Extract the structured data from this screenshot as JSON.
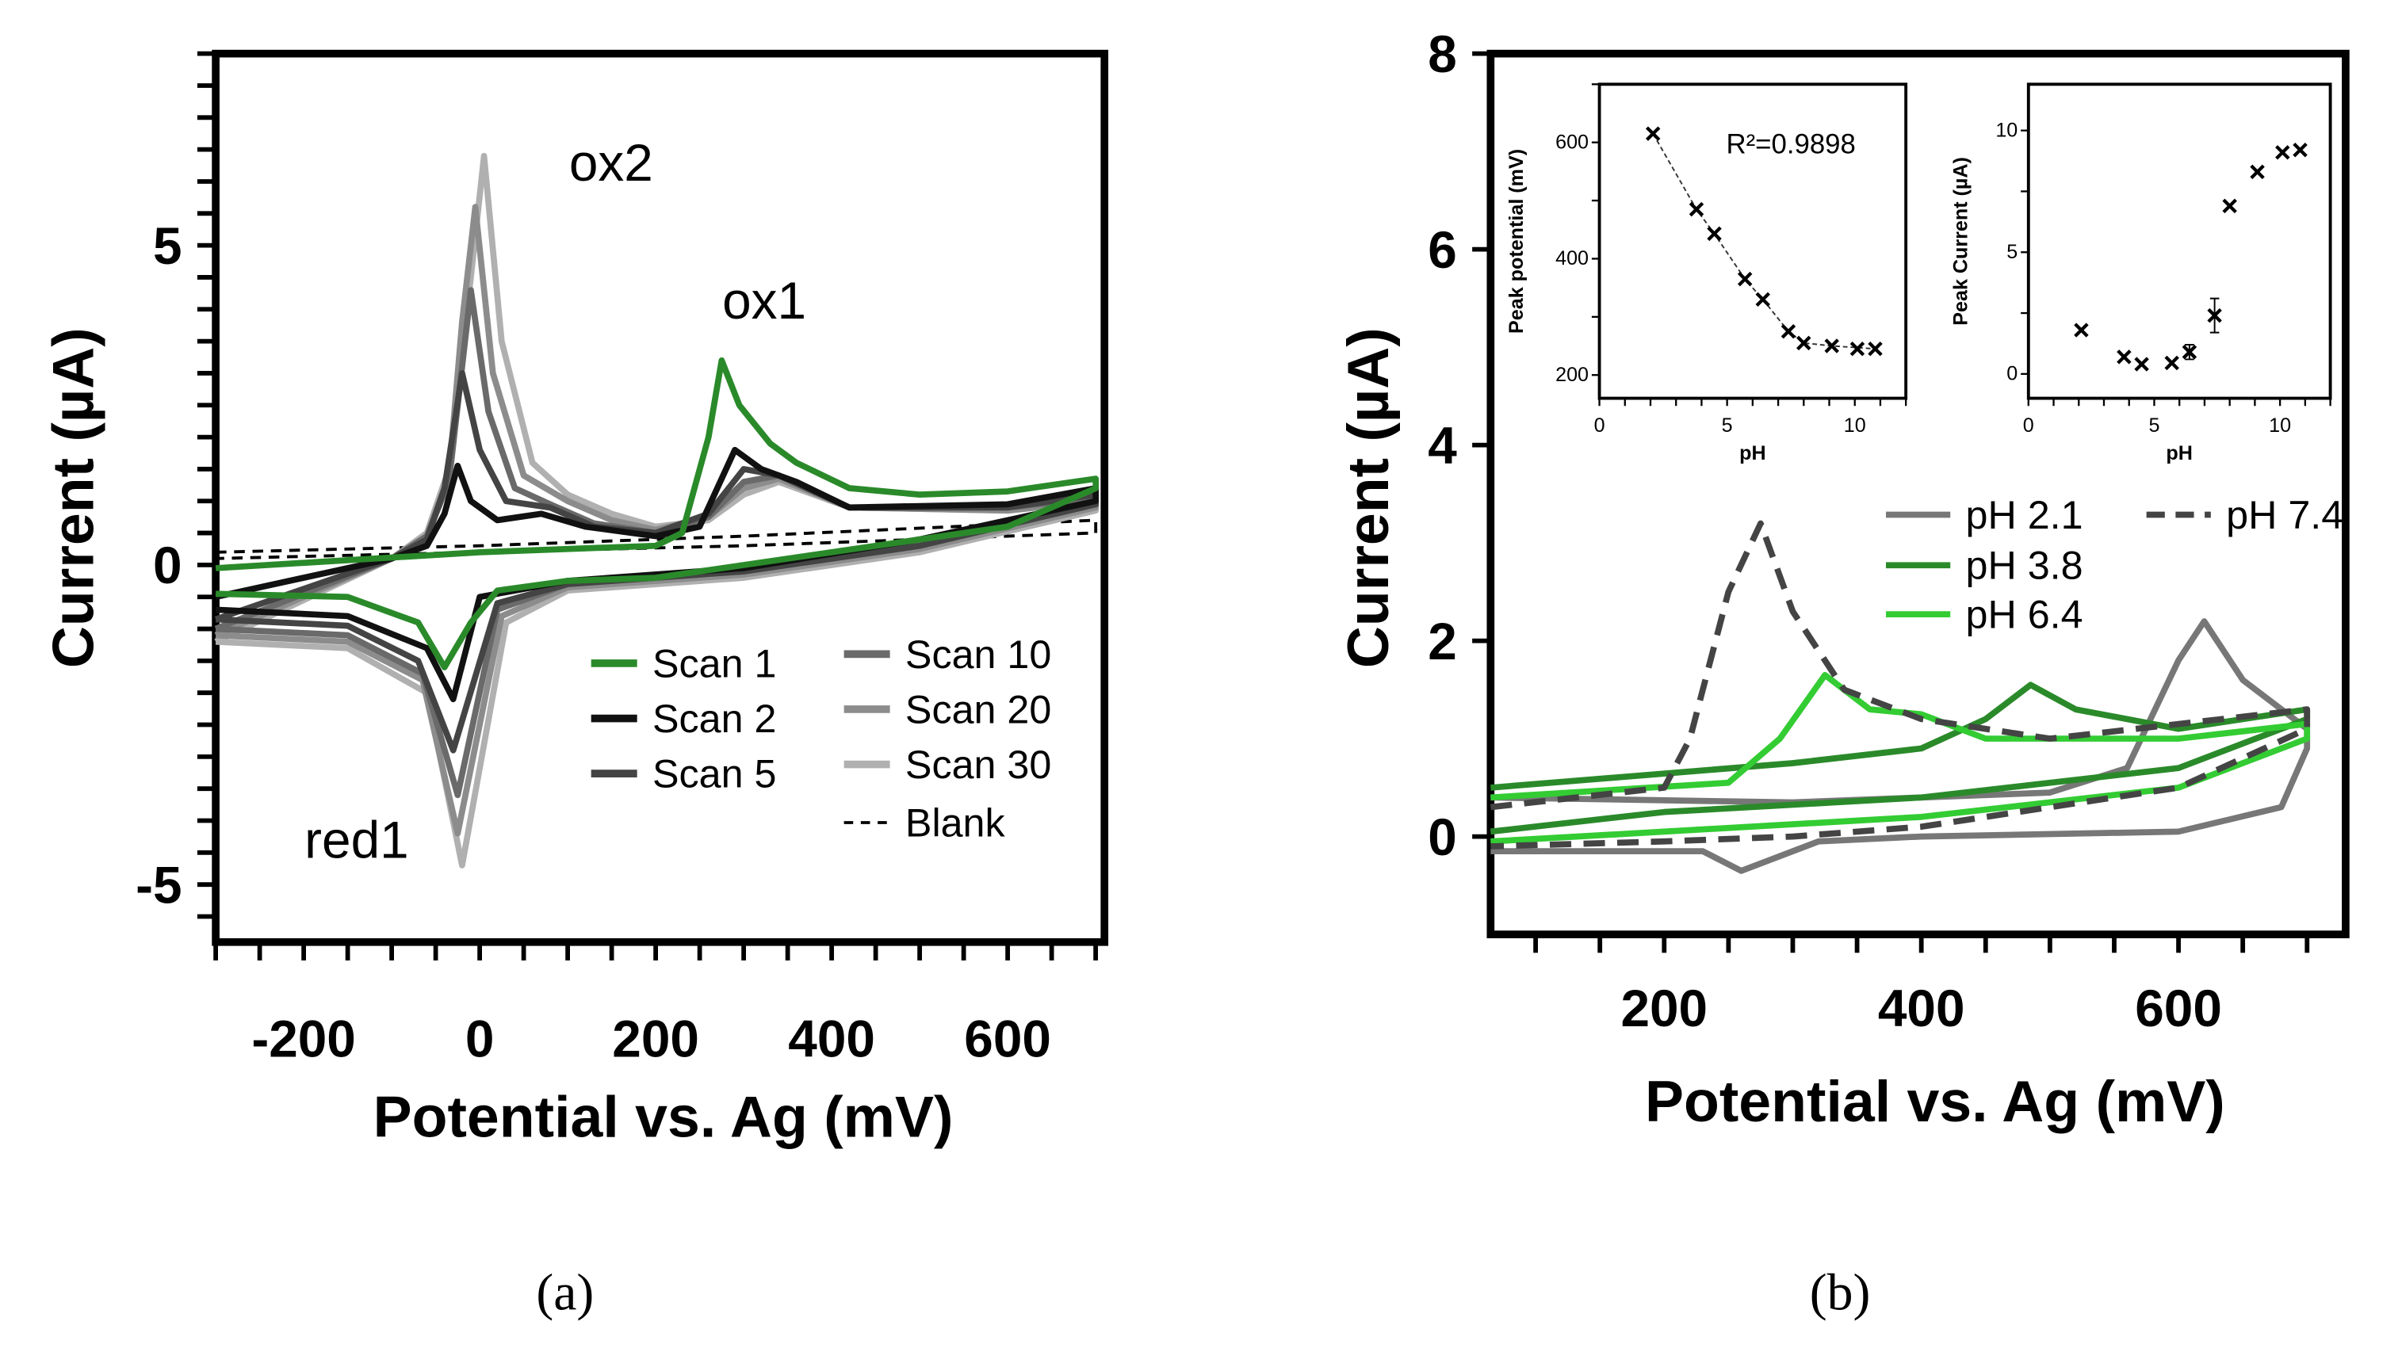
{
  "chart_data": [
    {
      "id": "a",
      "type": "line",
      "panel_label": "(a)",
      "xlabel": "Potential vs. Ag (mV)",
      "ylabel": "Current (µA)",
      "xlim": [
        -300,
        710
      ],
      "ylim": [
        -5.9,
        8
      ],
      "xticks": [
        -200,
        0,
        200,
        400,
        600
      ],
      "yticks": [
        -5,
        0,
        5
      ],
      "annotations": [
        "ox2",
        "ox1",
        "red1"
      ],
      "legend_placement": "bottom-right",
      "series": [
        {
          "name": "Blank",
          "color": "#000000",
          "dash": true,
          "x": [
            -300,
            0,
            300,
            700,
            700,
            300,
            0,
            -300
          ],
          "y": [
            0.2,
            0.3,
            0.45,
            0.7,
            0.5,
            0.3,
            0.2,
            0.1
          ]
        },
        {
          "name": "Scan 30",
          "color": "#b0b0b0",
          "x": [
            -300,
            -100,
            -60,
            -35,
            -10,
            5,
            25,
            60,
            100,
            150,
            200,
            260,
            300,
            340,
            420,
            600,
            700,
            700,
            500,
            300,
            100,
            30,
            -20,
            -60,
            -150,
            -300
          ],
          "y": [
            -1.2,
            0.1,
            0.5,
            1.5,
            4.5,
            6.4,
            3.5,
            1.6,
            1.1,
            0.8,
            0.6,
            0.7,
            1.1,
            1.3,
            0.9,
            0.85,
            1.0,
            0.85,
            0.2,
            -0.2,
            -0.4,
            -0.9,
            -4.7,
            -2.0,
            -1.3,
            -1.2
          ]
        },
        {
          "name": "Scan 20",
          "color": "#8c8c8c",
          "x": [
            -300,
            -100,
            -60,
            -35,
            -20,
            -5,
            15,
            50,
            100,
            150,
            200,
            260,
            300,
            340,
            420,
            600,
            700,
            700,
            500,
            300,
            100,
            25,
            -25,
            -65,
            -150,
            -300
          ],
          "y": [
            -1.1,
            0.1,
            0.45,
            1.4,
            3.8,
            5.6,
            3.0,
            1.4,
            1.0,
            0.7,
            0.55,
            0.75,
            1.2,
            1.35,
            0.9,
            0.85,
            1.0,
            0.9,
            0.25,
            -0.15,
            -0.35,
            -0.8,
            -4.2,
            -1.8,
            -1.2,
            -1.1
          ]
        },
        {
          "name": "Scan 10",
          "color": "#6a6a6a",
          "x": [
            -300,
            -100,
            -60,
            -35,
            -10,
            10,
            40,
            80,
            130,
            200,
            260,
            300,
            340,
            420,
            600,
            700,
            700,
            500,
            300,
            100,
            20,
            -25,
            -65,
            -150,
            -300
          ],
          "y": [
            -1.0,
            0.1,
            0.45,
            1.3,
            4.3,
            2.4,
            1.2,
            0.95,
            0.65,
            0.5,
            0.75,
            1.3,
            1.4,
            0.9,
            0.9,
            1.05,
            0.95,
            0.3,
            -0.1,
            -0.3,
            -0.7,
            -3.6,
            -1.7,
            -1.1,
            -1.0
          ]
        },
        {
          "name": "Scan 5",
          "color": "#444444",
          "x": [
            -300,
            -100,
            -60,
            -40,
            -20,
            0,
            30,
            80,
            130,
            200,
            260,
            300,
            340,
            420,
            600,
            700,
            700,
            500,
            300,
            100,
            20,
            -30,
            -70,
            -150,
            -300
          ],
          "y": [
            -0.85,
            0.1,
            0.4,
            1.2,
            3.0,
            1.8,
            1.0,
            0.9,
            0.6,
            0.5,
            0.8,
            1.5,
            1.4,
            0.9,
            0.9,
            1.1,
            0.95,
            0.3,
            -0.1,
            -0.3,
            -0.6,
            -2.9,
            -1.5,
            -0.95,
            -0.85
          ]
        },
        {
          "name": "Scan 2",
          "color": "#111111",
          "x": [
            -300,
            -100,
            -60,
            -40,
            -25,
            -10,
            20,
            70,
            120,
            200,
            250,
            290,
            320,
            360,
            420,
            600,
            700,
            700,
            500,
            300,
            100,
            0,
            -30,
            -60,
            -150,
            -300
          ],
          "y": [
            -0.5,
            0.1,
            0.3,
            0.8,
            1.55,
            1.0,
            0.7,
            0.8,
            0.6,
            0.45,
            0.6,
            1.8,
            1.5,
            1.3,
            0.9,
            0.95,
            1.2,
            1.0,
            0.4,
            -0.05,
            -0.25,
            -0.5,
            -2.1,
            -1.3,
            -0.8,
            -0.7
          ]
        },
        {
          "name": "Scan 1",
          "color": "#2a8a2a",
          "x": [
            -300,
            0,
            200,
            230,
            260,
            275,
            295,
            330,
            360,
            420,
            500,
            600,
            700,
            700,
            600,
            400,
            200,
            100,
            20,
            -10,
            -40,
            -70,
            -150,
            -300
          ],
          "y": [
            -0.05,
            0.2,
            0.3,
            0.5,
            2.0,
            3.2,
            2.5,
            1.9,
            1.6,
            1.2,
            1.1,
            1.15,
            1.35,
            1.2,
            0.6,
            0.2,
            -0.2,
            -0.25,
            -0.4,
            -0.9,
            -1.6,
            -0.9,
            -0.5,
            -0.45
          ]
        }
      ],
      "legend_order": [
        "Scan 1",
        "Scan 2",
        "Scan 5",
        "Scan 10",
        "Scan 20",
        "Scan 30",
        "Blank"
      ]
    },
    {
      "id": "b",
      "type": "line",
      "panel_label": "(b)",
      "xlabel": "Potential vs. Ag (mV)",
      "ylabel": "Current (µA)",
      "xlim": [
        65,
        730
      ],
      "ylim": [
        -1,
        8
      ],
      "xticks": [
        200,
        400,
        600
      ],
      "yticks": [
        0,
        2,
        4,
        6,
        8
      ],
      "legend_placement": "middle-right",
      "series": [
        {
          "name": "pH 2.1",
          "color": "#777777",
          "x": [
            65,
            300,
            500,
            560,
            600,
            620,
            650,
            700,
            700,
            680,
            600,
            400,
            320,
            280,
            260,
            230,
            150,
            65
          ],
          "y": [
            0.4,
            0.35,
            0.45,
            0.7,
            1.8,
            2.2,
            1.6,
            1.1,
            0.9,
            0.3,
            0.05,
            0,
            -0.05,
            -0.25,
            -0.35,
            -0.15,
            -0.15,
            -0.15
          ]
        },
        {
          "name": "pH 3.8",
          "color": "#2a8a2a",
          "x": [
            65,
            300,
            400,
            450,
            485,
            520,
            600,
            700,
            700,
            600,
            400,
            200,
            65
          ],
          "y": [
            0.5,
            0.75,
            0.9,
            1.2,
            1.55,
            1.3,
            1.1,
            1.3,
            1.2,
            0.7,
            0.4,
            0.25,
            0.05
          ]
        },
        {
          "name": "pH 6.4",
          "color": "#33cc33",
          "x": [
            65,
            250,
            290,
            325,
            360,
            400,
            450,
            600,
            700,
            700,
            600,
            400,
            200,
            65
          ],
          "y": [
            0.4,
            0.55,
            1.0,
            1.65,
            1.3,
            1.25,
            1.0,
            1.0,
            1.15,
            1.0,
            0.5,
            0.2,
            0.05,
            -0.05
          ]
        },
        {
          "name": "pH 7.4",
          "color": "#444444",
          "dash": true,
          "x": [
            65,
            200,
            220,
            250,
            275,
            300,
            340,
            400,
            500,
            700,
            700,
            600,
            400,
            300,
            200,
            65
          ],
          "y": [
            0.3,
            0.5,
            1.0,
            2.5,
            3.2,
            2.3,
            1.5,
            1.2,
            1.0,
            1.3,
            1.1,
            0.5,
            0.1,
            0,
            -0.05,
            -0.1
          ]
        }
      ]
    },
    {
      "id": "b-inset-1",
      "type": "scatter",
      "xlabel": "pH",
      "ylabel": "Peak potential (mV)",
      "xlim": [
        0,
        12
      ],
      "ylim": [
        160,
        700
      ],
      "xticks": [
        0,
        5,
        10
      ],
      "yticks": [
        200,
        400,
        600
      ],
      "annotation": "R²=0.9898",
      "fit_line": true,
      "x": [
        2.1,
        3.8,
        4.5,
        5.7,
        6.4,
        7.4,
        8.0,
        9.1,
        10.1,
        10.8
      ],
      "y": [
        615,
        485,
        443,
        365,
        330,
        275,
        255,
        250,
        245,
        245
      ]
    },
    {
      "id": "b-inset-2",
      "type": "scatter",
      "xlabel": "pH",
      "ylabel": "Peak Current (µA)",
      "xlim": [
        0,
        12
      ],
      "ylim": [
        -1,
        11.9
      ],
      "xticks": [
        0,
        5,
        10
      ],
      "yticks": [
        0,
        5,
        10
      ],
      "x": [
        2.1,
        3.8,
        4.5,
        5.7,
        6.4,
        7.4,
        8.0,
        9.1,
        10.1,
        10.8
      ],
      "y": [
        1.8,
        0.7,
        0.4,
        0.45,
        0.9,
        2.4,
        6.9,
        8.3,
        9.1,
        9.2
      ],
      "error": [
        0,
        0,
        0,
        0,
        0.3,
        0.7,
        0,
        0,
        0,
        0
      ]
    }
  ]
}
